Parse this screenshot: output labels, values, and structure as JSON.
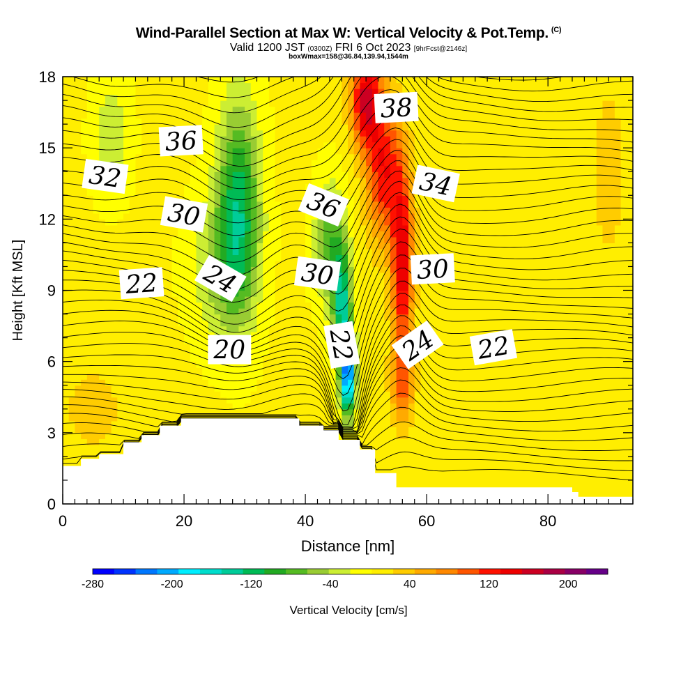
{
  "chart_data": {
    "type": "heatmap",
    "title": "Wind-Parallel Section at Max W: Vertical Velocity & Pot.Temp.",
    "title_mark": "(C)",
    "subtitle_parts": [
      "Valid 1200 JST ",
      "(0300Z)",
      " FRI 6 Oct 2023 ",
      "[9hrFcst@2146z]"
    ],
    "subtitle2": "boxWmax=158@36.84,139.94,1544m",
    "xlabel": "Distance [nm]",
    "ylabel": "Height [Kft MSL]",
    "xlim": [
      0,
      94
    ],
    "ylim": [
      0,
      18
    ],
    "x_ticks": [
      0,
      20,
      40,
      60,
      80
    ],
    "y_ticks": [
      0,
      3,
      6,
      9,
      12,
      15,
      18
    ],
    "colorbar": {
      "label": "Vertical Velocity [cm/s]",
      "range": [
        -280,
        240
      ],
      "tick_labels": [
        "-280",
        "-200",
        "-120",
        "-40",
        "40",
        "120",
        "200"
      ],
      "tick_values": [
        -280,
        -200,
        -120,
        -40,
        40,
        120,
        200
      ],
      "colors": [
        "#0000ff",
        "#0033ff",
        "#0077ff",
        "#00aaff",
        "#00eeff",
        "#00ddcc",
        "#00cc99",
        "#00bb55",
        "#22aa22",
        "#55bb22",
        "#99cc33",
        "#ccee33",
        "#ffff00",
        "#ffee00",
        "#ffcc00",
        "#ffaa00",
        "#ff8800",
        "#ff5500",
        "#ff1100",
        "#ee0000",
        "#cc0022",
        "#aa0044",
        "#880066",
        "#660088"
      ]
    },
    "contour_labels": [
      {
        "text": "32",
        "x": 7,
        "y": 13.8,
        "angle": 8
      },
      {
        "text": "36",
        "x": 19.5,
        "y": 15.3,
        "angle": -3
      },
      {
        "text": "30",
        "x": 20,
        "y": 12.2,
        "angle": 10
      },
      {
        "text": "22",
        "x": 13,
        "y": 9.3,
        "angle": -4
      },
      {
        "text": "24",
        "x": 26,
        "y": 9.5,
        "angle": 30
      },
      {
        "text": "20",
        "x": 27.5,
        "y": 6.5,
        "angle": 0
      },
      {
        "text": "36",
        "x": 43,
        "y": 12.6,
        "angle": 22
      },
      {
        "text": "30",
        "x": 42,
        "y": 9.7,
        "angle": 8
      },
      {
        "text": "22",
        "x": 46,
        "y": 6.7,
        "angle": 80
      },
      {
        "text": "38",
        "x": 55,
        "y": 16.7,
        "angle": -3
      },
      {
        "text": "34",
        "x": 61.5,
        "y": 13.5,
        "angle": 12
      },
      {
        "text": "30",
        "x": 61,
        "y": 9.9,
        "angle": -3
      },
      {
        "text": "24",
        "x": 58.5,
        "y": 6.7,
        "angle": -35
      },
      {
        "text": "22",
        "x": 71,
        "y": 6.6,
        "angle": -10
      }
    ],
    "terrain": [
      [
        0,
        1.6
      ],
      [
        3,
        1.6
      ],
      [
        3,
        1.9
      ],
      [
        6,
        1.9
      ],
      [
        6,
        2.1
      ],
      [
        10,
        2.1
      ],
      [
        10,
        2.6
      ],
      [
        13,
        2.6
      ],
      [
        13,
        2.9
      ],
      [
        16,
        2.9
      ],
      [
        16,
        3.3
      ],
      [
        19.5,
        3.3
      ],
      [
        19.5,
        3.6
      ],
      [
        39,
        3.6
      ],
      [
        39,
        3.3
      ],
      [
        43,
        3.3
      ],
      [
        43,
        3.1
      ],
      [
        45.5,
        3.1
      ],
      [
        45.5,
        2.7
      ],
      [
        49,
        2.7
      ],
      [
        49,
        2.3
      ],
      [
        51.5,
        2.3
      ],
      [
        51.5,
        1.3
      ],
      [
        55,
        1.3
      ],
      [
        55,
        0.7
      ],
      [
        84,
        0.7
      ],
      [
        84,
        0.5
      ],
      [
        85,
        0.5
      ],
      [
        85,
        0.3
      ],
      [
        94,
        0.3
      ]
    ],
    "velocity_features": [
      {
        "x": 47,
        "y": 5.5,
        "w": -230,
        "sx": 1.2,
        "sy": 1.8
      },
      {
        "x": 46,
        "y": 8.5,
        "w": -130,
        "sx": 1.6,
        "sy": 2.5
      },
      {
        "x": 44,
        "y": 11,
        "w": -80,
        "sx": 2.5,
        "sy": 2.5
      },
      {
        "x": 29,
        "y": 12.5,
        "w": -120,
        "sx": 3.5,
        "sy": 4.5
      },
      {
        "x": 26,
        "y": 10,
        "w": -50,
        "sx": 5,
        "sy": 3
      },
      {
        "x": 8,
        "y": 15.5,
        "w": -45,
        "sx": 3,
        "sy": 2.5
      },
      {
        "x": 56,
        "y": 10,
        "w": 140,
        "sx": 1.8,
        "sy": 4
      },
      {
        "x": 53,
        "y": 14,
        "w": 120,
        "sx": 3,
        "sy": 3
      },
      {
        "x": 50,
        "y": 17,
        "w": 150,
        "sx": 2.5,
        "sy": 2
      },
      {
        "x": 56,
        "y": 5,
        "w": 70,
        "sx": 2,
        "sy": 1.7
      },
      {
        "x": 5,
        "y": 4,
        "w": 30,
        "sx": 5,
        "sy": 2
      },
      {
        "x": 90,
        "y": 14,
        "w": 25,
        "sx": 4,
        "sy": 5
      },
      {
        "x": 65,
        "y": 15,
        "w": 15,
        "sx": 4,
        "sy": 3
      }
    ]
  }
}
